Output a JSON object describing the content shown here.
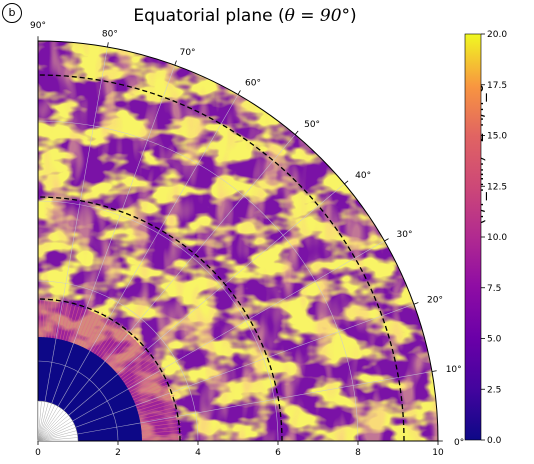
{
  "panel_label": "b",
  "chart_data": {
    "type": "heatmap",
    "projection": "polar-quarter",
    "title": "Equatorial plane (θ = 90°)",
    "title_text": "Equatorial plane (",
    "title_math": "θ = 90°",
    "title_end": ")",
    "colorbar_label": "(r/r_min)^2 n/n_0",
    "colormap": "plasma",
    "clim": [
      0.0,
      20.0
    ],
    "colorbar_ticks": [
      "0.0",
      "2.5",
      "5.0",
      "7.5",
      "10.0",
      "12.5",
      "15.0",
      "17.5",
      "20.0"
    ],
    "r_range": [
      0,
      10
    ],
    "x_ticks": [
      "0",
      "2",
      "4",
      "6",
      "8",
      "10"
    ],
    "angle_ticks": [
      "0°",
      "10°",
      "20°",
      "30°",
      "40°",
      "50°",
      "60°",
      "70°",
      "80°",
      "90°"
    ],
    "inner_boundary_radius": 1.0,
    "dense_core_radius": 2.6,
    "dashed_circle_radii": [
      3.55,
      6.1,
      9.15
    ],
    "grid": true,
    "colors": {
      "low": "#0d0887",
      "mid": "#cc4778",
      "high": "#f0f921",
      "dashed": "#000000",
      "grid": "#c8c8d8"
    }
  }
}
